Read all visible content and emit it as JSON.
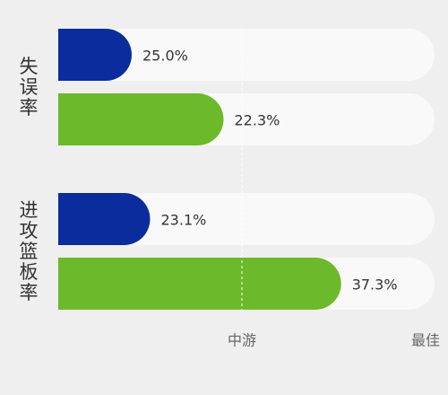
{
  "chart_data": {
    "type": "bar",
    "orientation": "horizontal",
    "categories": [
      "失误率",
      "进攻篮板率"
    ],
    "series": [
      {
        "color": "#0b2c9c",
        "values": [
          20,
          25
        ],
        "labels": [
          "25.0%",
          "23.1%"
        ]
      },
      {
        "color": "#6cb92b",
        "values": [
          45,
          77
        ],
        "labels": [
          "22.3%",
          "37.3%"
        ]
      }
    ],
    "xlim": [
      0,
      100
    ],
    "xticks": [
      {
        "value": 50,
        "label": "中游"
      },
      {
        "value": 100,
        "label": "最佳"
      }
    ],
    "track_color": "#f9f9f9"
  }
}
